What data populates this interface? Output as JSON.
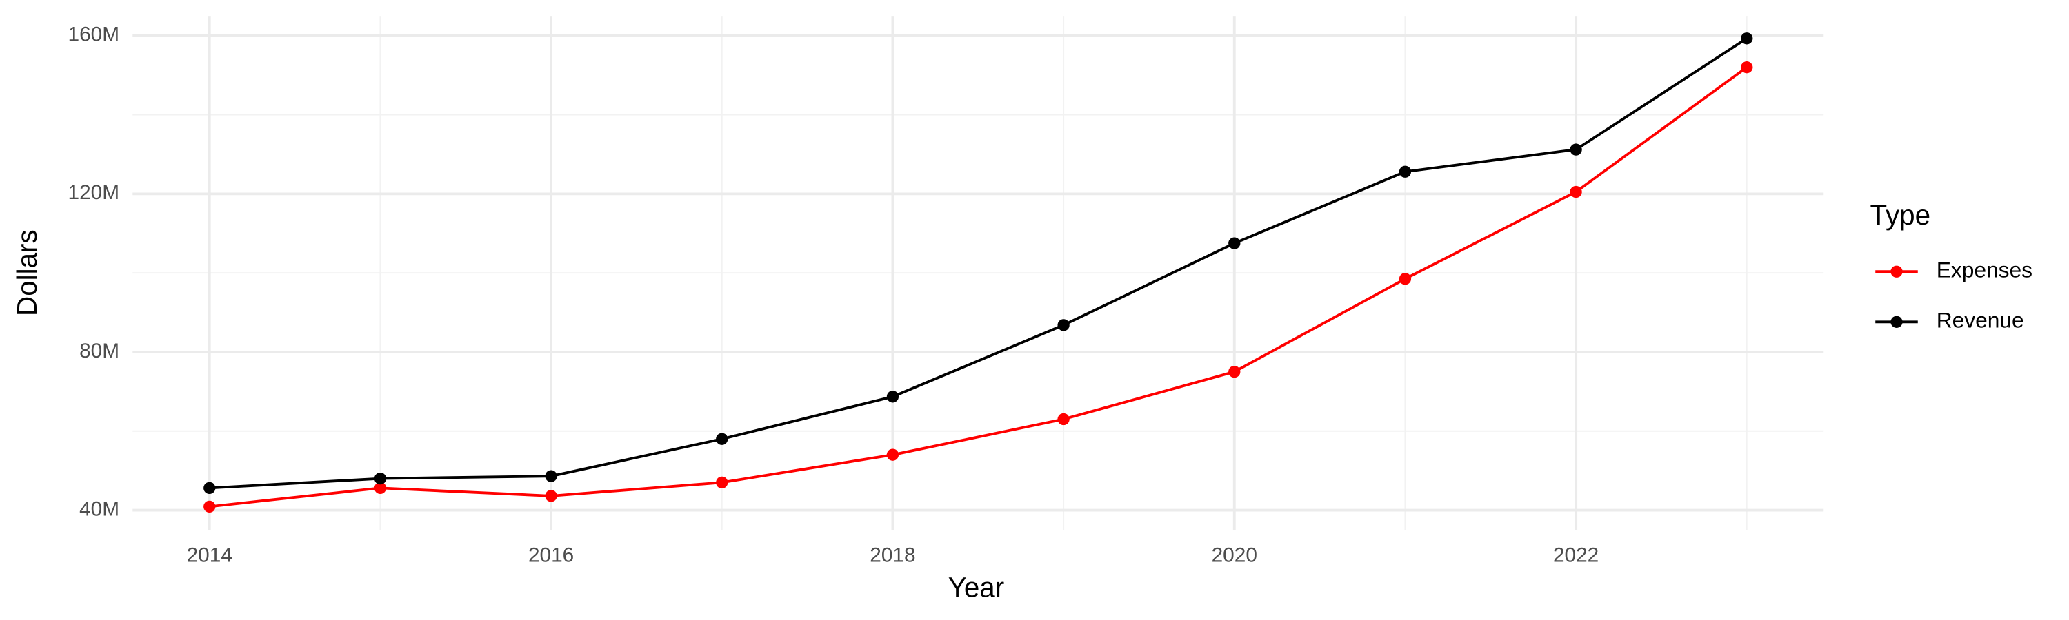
{
  "chart_data": {
    "type": "line",
    "x_label": "Year",
    "y_label": "Dollars",
    "x": [
      2014,
      2015,
      2016,
      2017,
      2018,
      2019,
      2020,
      2021,
      2022,
      2023
    ],
    "series": [
      {
        "name": "Expenses",
        "color": "#ff0000",
        "values": [
          40900000,
          45600000,
          43600000,
          47000000,
          54000000,
          63000000,
          75000000,
          98500000,
          120500000,
          152000000
        ]
      },
      {
        "name": "Revenue",
        "color": "#000000",
        "values": [
          45600000,
          48000000,
          48600000,
          58000000,
          68700000,
          86800000,
          107500000,
          125600000,
          131200000,
          159300000
        ]
      }
    ],
    "xlim": [
      2013.55,
      2023.45
    ],
    "xticks": [
      2014,
      2016,
      2018,
      2020,
      2022
    ],
    "xminorticks": [
      2015,
      2017,
      2019,
      2021,
      2023
    ],
    "ylim": [
      35000000,
      165000000
    ],
    "yticks": [
      {
        "value": 40000000,
        "label": "40M"
      },
      {
        "value": 80000000,
        "label": "80M"
      },
      {
        "value": 120000000,
        "label": "120M"
      },
      {
        "value": 160000000,
        "label": "160M"
      }
    ],
    "yminorticks": [
      60000000,
      100000000,
      140000000
    ],
    "grid": true,
    "legend_title": "Type",
    "legend_position": "right"
  }
}
